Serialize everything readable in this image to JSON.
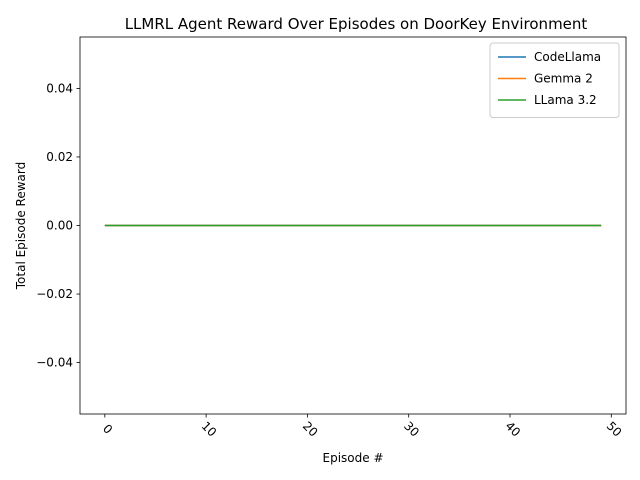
{
  "chart_data": {
    "type": "line",
    "title": "LLMRL Agent Reward Over Episodes on DoorKey Environment",
    "xlabel": "Episode #",
    "ylabel": "Total Episode Reward",
    "xlim": [
      -2.45,
      51.45
    ],
    "ylim": [
      -0.055,
      0.055
    ],
    "xticks": [
      0,
      10,
      20,
      30,
      40,
      50
    ],
    "xtick_labels": [
      "0",
      "10",
      "20",
      "30",
      "40",
      "50"
    ],
    "xtick_rotation": 45,
    "yticks": [
      -0.04,
      -0.02,
      0.0,
      0.02,
      0.04
    ],
    "ytick_labels": [
      "−0.04",
      "−0.02",
      "0.00",
      "0.02",
      "0.04"
    ],
    "grid": false,
    "legend_position": "top-right",
    "x": [
      0,
      1,
      2,
      3,
      4,
      5,
      6,
      7,
      8,
      9,
      10,
      11,
      12,
      13,
      14,
      15,
      16,
      17,
      18,
      19,
      20,
      21,
      22,
      23,
      24,
      25,
      26,
      27,
      28,
      29,
      30,
      31,
      32,
      33,
      34,
      35,
      36,
      37,
      38,
      39,
      40,
      41,
      42,
      43,
      44,
      45,
      46,
      47,
      48,
      49
    ],
    "series": [
      {
        "name": "CodeLlama",
        "color": "#1f77b4",
        "values": [
          0,
          0,
          0,
          0,
          0,
          0,
          0,
          0,
          0,
          0,
          0,
          0,
          0,
          0,
          0,
          0,
          0,
          0,
          0,
          0,
          0,
          0,
          0,
          0,
          0,
          0,
          0,
          0,
          0,
          0,
          0,
          0,
          0,
          0,
          0,
          0,
          0,
          0,
          0,
          0,
          0,
          0,
          0,
          0,
          0,
          0,
          0,
          0,
          0,
          0
        ]
      },
      {
        "name": "Gemma 2",
        "color": "#ff7f0e",
        "values": [
          0,
          0,
          0,
          0,
          0,
          0,
          0,
          0,
          0,
          0,
          0,
          0,
          0,
          0,
          0,
          0,
          0,
          0,
          0,
          0,
          0,
          0,
          0,
          0,
          0,
          0,
          0,
          0,
          0,
          0,
          0,
          0,
          0,
          0,
          0,
          0,
          0,
          0,
          0,
          0,
          0,
          0,
          0,
          0,
          0,
          0,
          0,
          0,
          0,
          0
        ]
      },
      {
        "name": "LLama 3.2",
        "color": "#2ca02c",
        "values": [
          0,
          0,
          0,
          0,
          0,
          0,
          0,
          0,
          0,
          0,
          0,
          0,
          0,
          0,
          0,
          0,
          0,
          0,
          0,
          0,
          0,
          0,
          0,
          0,
          0,
          0,
          0,
          0,
          0,
          0,
          0,
          0,
          0,
          0,
          0,
          0,
          0,
          0,
          0,
          0,
          0,
          0,
          0,
          0,
          0,
          0,
          0,
          0,
          0,
          0
        ]
      }
    ]
  }
}
